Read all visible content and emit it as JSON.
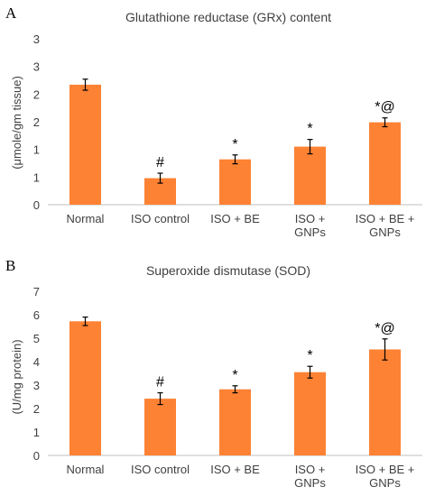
{
  "chart_data": [
    {
      "type": "bar",
      "panel": "A",
      "title": "Glutathione reductase (GRx) content",
      "ylabel": "(μmole/gm tissue)",
      "categories": [
        "Normal",
        "ISO control",
        "ISO + BE",
        "ISO +\nGNPs",
        "ISO + BE +\nGNPs"
      ],
      "values": [
        2.17,
        0.48,
        0.82,
        1.05,
        1.49
      ],
      "errors": [
        0.1,
        0.09,
        0.08,
        0.13,
        0.08
      ],
      "annotations": [
        "",
        "#",
        "*",
        "*",
        "*@"
      ],
      "y_tick_labels": [
        "0",
        "1",
        "1",
        "2",
        "2",
        "3",
        "3"
      ],
      "y_tick_values": [
        0,
        0.5,
        1,
        1.5,
        2,
        2.5,
        3
      ],
      "ylim": [
        0,
        3
      ],
      "color": "#fd8234",
      "grid": false
    },
    {
      "type": "bar",
      "panel": "B",
      "title": "Superoxide dismutase (SOD)",
      "ylabel": "(U/mg protein)",
      "categories": [
        "Normal",
        "ISO control",
        "ISO + BE",
        "ISO +\nGNPs",
        "ISO + BE +\nGNPs"
      ],
      "values": [
        5.72,
        2.42,
        2.82,
        3.55,
        4.52
      ],
      "errors": [
        0.18,
        0.25,
        0.15,
        0.25,
        0.45
      ],
      "annotations": [
        "",
        "#",
        "*",
        "*",
        "*@"
      ],
      "y_tick_labels": [
        "0",
        "1",
        "2",
        "3",
        "4",
        "5",
        "6",
        "7"
      ],
      "y_tick_values": [
        0,
        1,
        2,
        3,
        4,
        5,
        6,
        7
      ],
      "ylim": [
        0,
        7
      ],
      "color": "#fd8234",
      "grid": false
    }
  ]
}
